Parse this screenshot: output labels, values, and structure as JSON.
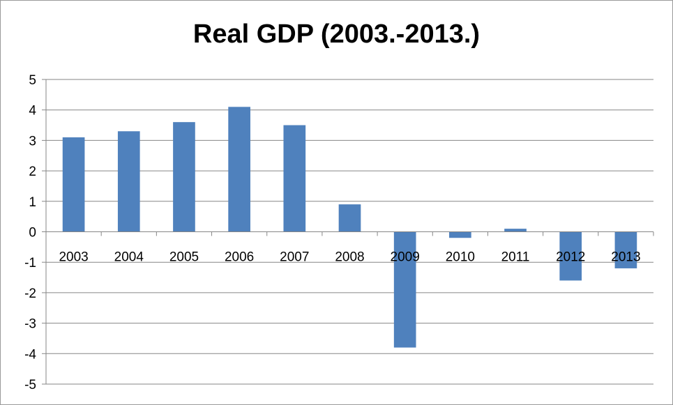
{
  "chart_data": {
    "type": "bar",
    "title": "Real GDP (2003.-2013.)",
    "categories": [
      "2003",
      "2004",
      "2005",
      "2006",
      "2007",
      "2008",
      "2009",
      "2010",
      "2011",
      "2012",
      "2013"
    ],
    "values": [
      3.1,
      3.3,
      3.6,
      4.1,
      3.5,
      0.9,
      -3.8,
      -0.2,
      0.1,
      -1.6,
      -1.2
    ],
    "ylim": [
      -5,
      5
    ],
    "yticks": [
      "5",
      "4",
      "3",
      "2",
      "1",
      "0",
      "-1",
      "-2",
      "-3",
      "-4",
      "-5"
    ],
    "xlabel": "",
    "ylabel": "",
    "grid": true,
    "legend": "none",
    "bar_color": "#4F81BD",
    "grid_color": "#868686"
  }
}
